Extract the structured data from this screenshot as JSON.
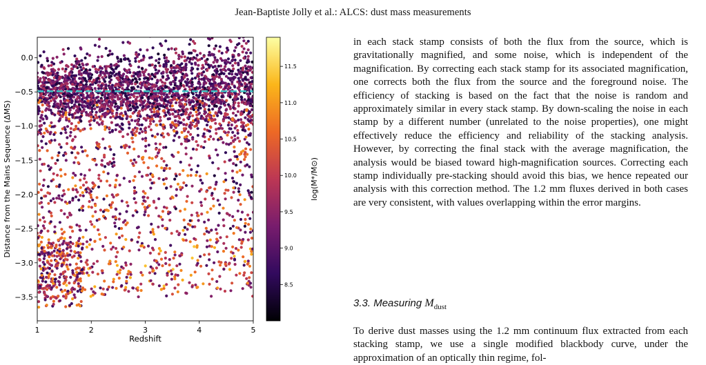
{
  "header": {
    "running_head": "Jean-Baptiste Jolly et al.: ALCS: dust mass measurements"
  },
  "figure": {
    "chart_data": {
      "type": "scatter",
      "xlabel": "Redshift",
      "ylabel": "Distance from the Mains Sequence (ΔMS)",
      "xlim": [
        1,
        5
      ],
      "ylim": [
        -3.85,
        0.3
      ],
      "x_ticks": [
        "1",
        "2",
        "3",
        "4",
        "5"
      ],
      "y_ticks": [
        "0.0",
        "−0.5",
        "−1.0",
        "−1.5",
        "−2.0",
        "−2.5",
        "−3.0",
        "−3.5"
      ],
      "reference_line": {
        "y": -0.49,
        "style": "dashed",
        "color": "#3ec6c6"
      },
      "colorbar": {
        "label": "log(M*/M⊙)",
        "range": [
          8.0,
          11.9
        ],
        "ticks": [
          "8.5",
          "9.0",
          "9.5",
          "10.0",
          "10.5",
          "11.0",
          "11.5"
        ],
        "colormap": "inferno"
      },
      "point_color_scale": [
        "#000004",
        "#320a5e",
        "#781c6d",
        "#bc3754",
        "#ed6925",
        "#fbb61a",
        "#fcffa4"
      ],
      "grid": false,
      "legend": "none"
    }
  },
  "body": {
    "paragraph_1": "in each stack stamp consists of both the flux from the source, which is gravitationally magnified, and some noise, which is independent of the magnification. By correcting each stack stamp for its associated magnification, one corrects both the flux from the source and the foreground noise. The efficiency of stacking is based on the fact that the noise is random and approximately similar in every stack stamp. By down-scaling the noise in each stamp by a different number (unrelated to the noise properties), one might effectively reduce the efficiency and reliability of the stacking analysis. However, by correcting the final stack with the average magnification, the analysis would be biased toward high-magnification sources. Correcting each stamp individually pre-stacking should avoid this bias, we hence repeated our analysis with this correction method. The 1.2 mm fluxes derived in both cases are very consistent, with values overlapping within the error margins.",
    "section_number": "3.3.",
    "section_title_prefix": "Measuring",
    "section_symbol": "M",
    "section_subscript": "dust",
    "paragraph_2": "To derive dust masses using the 1.2 mm continuum flux extracted from each stacking stamp, we use a single modified blackbody curve, under the approximation of an optically thin regime, fol-"
  }
}
